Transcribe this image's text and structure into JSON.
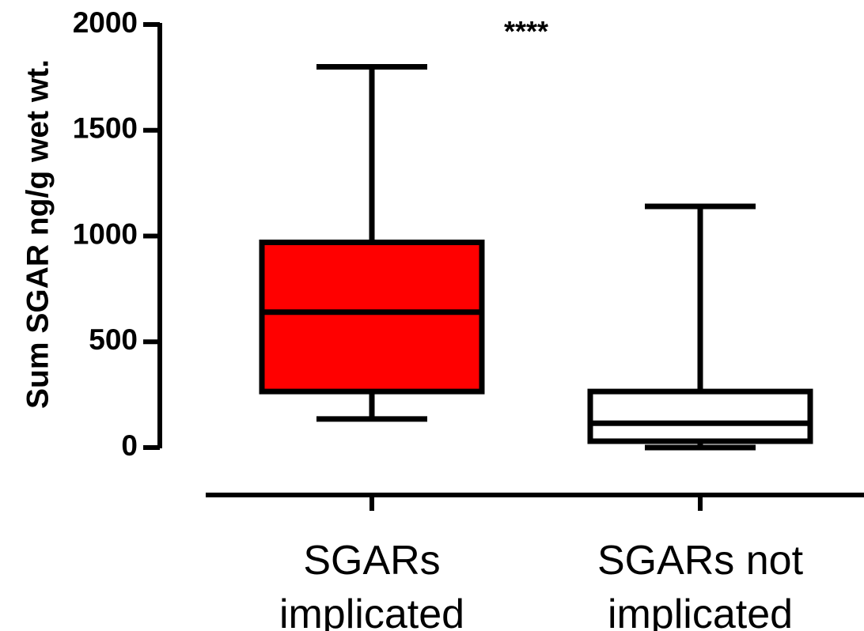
{
  "chart_data": {
    "type": "box",
    "ylabel": "Sum SGAR ng/g wet wt.",
    "ylim": [
      0,
      2000
    ],
    "yticks": [
      0,
      500,
      1000,
      1500,
      2000
    ],
    "ytick_labels": [
      "0",
      "500",
      "1000",
      "1500",
      "2000"
    ],
    "categories": [
      [
        "SGARs",
        "implicated"
      ],
      [
        "SGARs not",
        "implicated"
      ]
    ],
    "boxes": [
      {
        "whisker_low": 135,
        "q1": 265,
        "median": 640,
        "q3": 970,
        "whisker_high": 1800,
        "fill": "#ff0000"
      },
      {
        "whisker_low": 0,
        "q1": 30,
        "median": 115,
        "q3": 265,
        "whisker_high": 1140,
        "fill": "#ffffff"
      }
    ],
    "annotation": "****",
    "grid": false,
    "legend": "none"
  }
}
